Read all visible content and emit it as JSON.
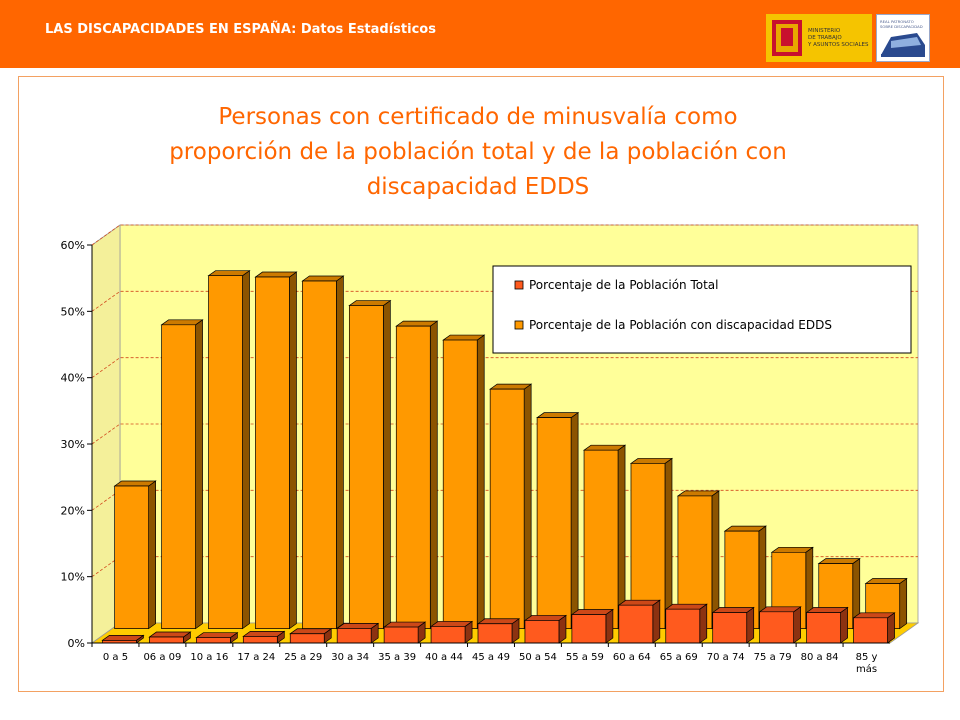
{
  "header": {
    "title": "LAS DISCAPACIDADES EN ESPAÑA: Datos Estadísticos"
  },
  "logos": {
    "ministerio_lines": [
      "MINISTERIO",
      "DE TRABAJO",
      "Y ASUNTOS SOCIALES"
    ],
    "imserso_lines": [
      "REAL PATRONATO",
      "SOBRE DISCAPACIDAD"
    ]
  },
  "colors": {
    "accent": "#ff6600",
    "plot_bg": "#ffff99",
    "series1": "#ff5a1e",
    "series2": "#ff9900",
    "grid": "#d24a1e"
  },
  "chart_data": {
    "type": "bar",
    "title_lines": [
      "Personas con certificado de minusvalía como",
      "proporción de la población total y de la población con",
      "discapacidad EDDS"
    ],
    "categories": [
      "0 a 5",
      "06 a 09",
      "10 a 16",
      "17 a 24",
      "25 a 29",
      "30 a 34",
      "35 a 39",
      "40 a 44",
      "45 a 49",
      "50 a 54",
      "55 a 59",
      "60 a 64",
      "65 a 69",
      "70 a 74",
      "75 a 79",
      "80 a 84",
      "85 y más"
    ],
    "series": [
      {
        "name": "Porcentaje de la Población Total",
        "values": [
          0.4,
          0.9,
          0.8,
          1.0,
          1.4,
          2.2,
          2.4,
          2.5,
          2.9,
          3.4,
          4.3,
          5.7,
          5.1,
          4.6,
          4.7,
          4.6,
          3.8
        ]
      },
      {
        "name": "Porcentaje de la Población con discapacidad EDDS",
        "values": [
          21.5,
          45.8,
          53.2,
          53.0,
          52.4,
          48.7,
          45.6,
          43.5,
          36.1,
          31.8,
          26.9,
          24.9,
          20.0,
          14.7,
          11.5,
          9.8,
          6.8
        ]
      }
    ],
    "ylim": [
      0,
      60
    ],
    "yticks": [
      "0%",
      "10%",
      "20%",
      "30%",
      "40%",
      "50%",
      "60%"
    ],
    "legend_position": "top-right",
    "grid": true,
    "chart_type_detail": "3d-clustered-column"
  }
}
